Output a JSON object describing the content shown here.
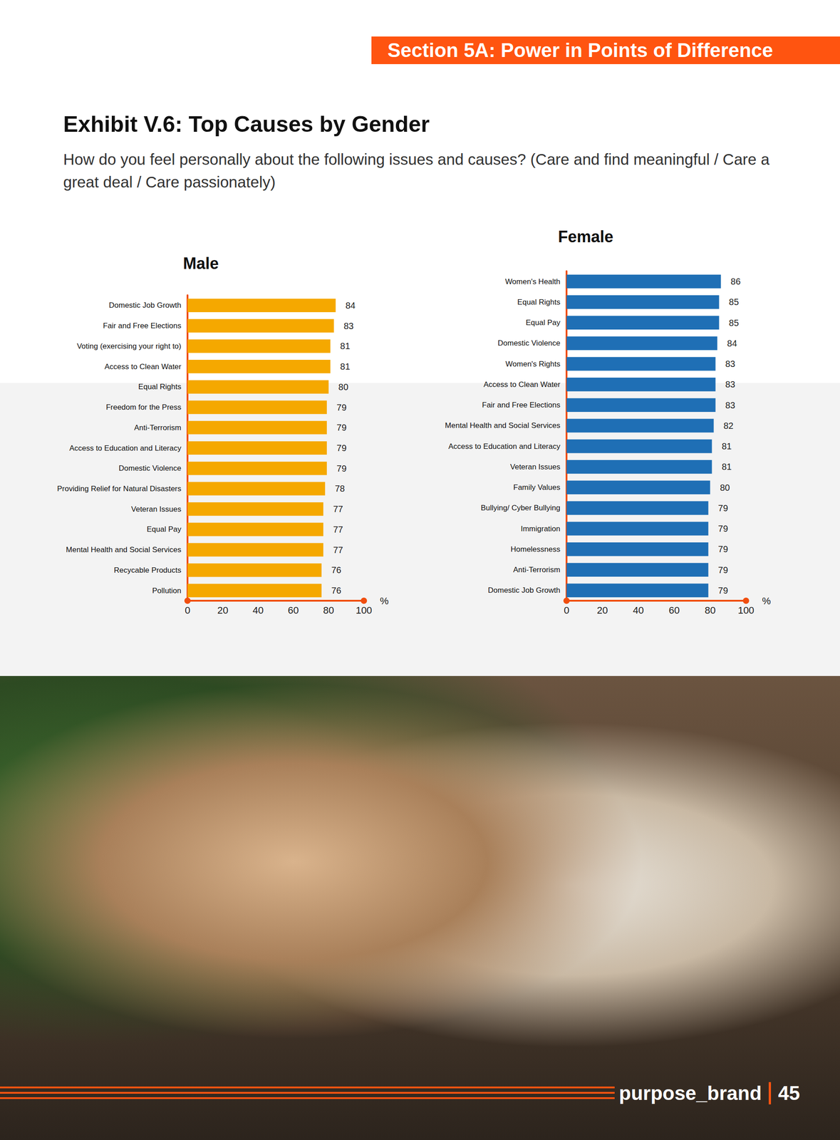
{
  "page": {
    "section": "Section 5A: Power in Points of Difference",
    "title": "Exhibit V.6: Top Causes by Gender",
    "subtitle": "How do you feel personally about the following issues and causes? (Care and find meaningful / Care a great deal / Care passionately)",
    "brand": "purpose_brand",
    "page_number": "45"
  },
  "chart_data": [
    {
      "type": "bar",
      "title": "Male",
      "orientation": "horizontal",
      "data_labels": true,
      "color": "#f5a800",
      "categories": [
        "Domestic Job Growth",
        "Fair and Free Elections",
        "Voting (exercising your right to)",
        "Access to Clean Water",
        "Equal Rights",
        "Freedom for the Press",
        "Anti-Terrorism",
        "Access to Education and Literacy",
        "Domestic Violence",
        "Providing Relief for Natural Disasters",
        "Veteran Issues",
        "Equal Pay",
        "Mental Health and Social Services",
        "Recycable Products",
        "Pollution"
      ],
      "values": [
        84,
        83,
        81,
        81,
        80,
        79,
        79,
        79,
        79,
        78,
        77,
        77,
        77,
        76,
        76
      ],
      "xlim": [
        0,
        100
      ],
      "xticks": [
        0,
        20,
        40,
        60,
        80,
        100
      ],
      "x_label": "%",
      "grid": false
    },
    {
      "type": "bar",
      "title": "Female",
      "orientation": "horizontal",
      "data_labels": true,
      "color": "#1f6fb5",
      "categories": [
        "Women's Health",
        "Equal Rights",
        "Equal Pay",
        "Domestic Violence",
        "Women's Rights",
        "Access to Clean Water",
        "Fair and Free Elections",
        "Mental Health and Social Services",
        "Access to Education and Literacy",
        "Veteran Issues",
        "Family Values",
        "Bullying/ Cyber Bullying",
        "Immigration",
        "Homelessness",
        "Anti-Terrorism",
        "Domestic Job Growth"
      ],
      "values": [
        86,
        85,
        85,
        84,
        83,
        83,
        83,
        82,
        81,
        81,
        80,
        79,
        79,
        79,
        79,
        79
      ],
      "xlim": [
        0,
        100
      ],
      "xticks": [
        0,
        20,
        40,
        60,
        80,
        100
      ],
      "x_label": "%",
      "grid": false
    }
  ]
}
